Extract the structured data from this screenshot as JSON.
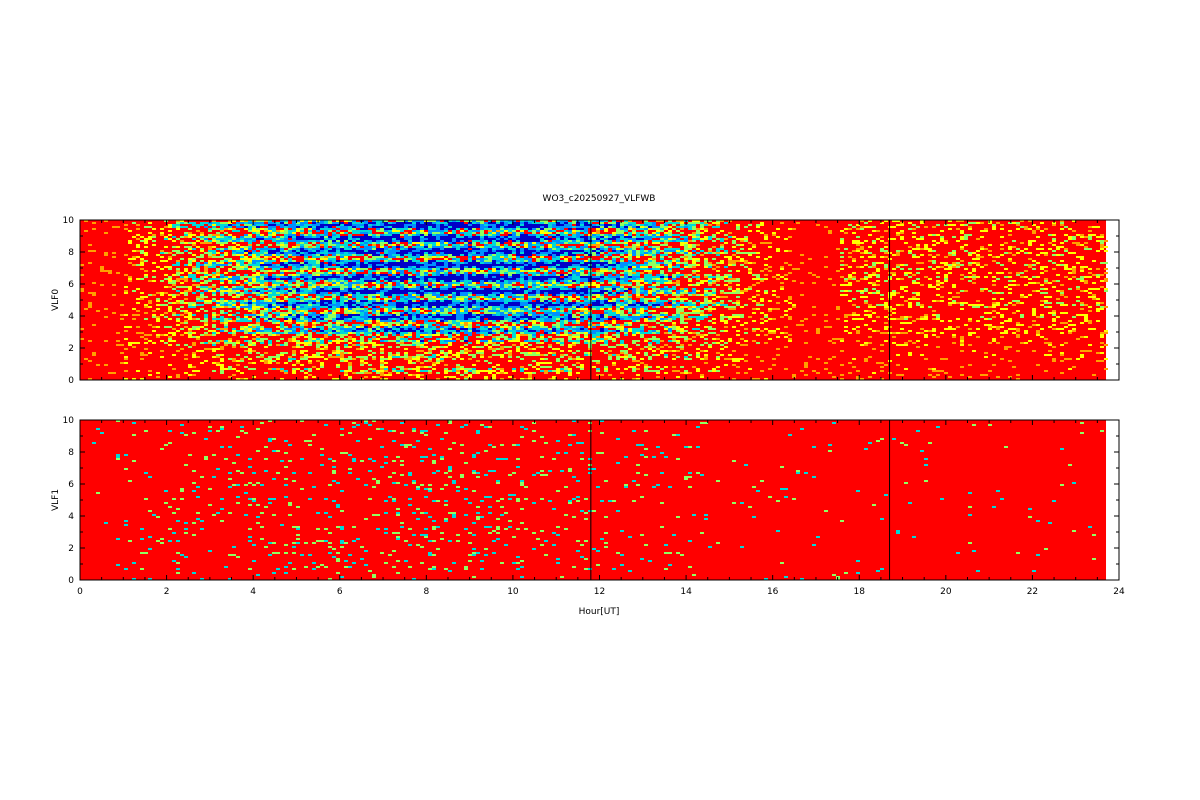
{
  "chart_data": [
    {
      "type": "heatmap",
      "title": "WO3_c20250927_VLFWB",
      "ylabel": "VLF0",
      "xlabel": "",
      "xlim": [
        0,
        24
      ],
      "ylim": [
        0,
        10
      ],
      "xticks": [
        0,
        2,
        4,
        6,
        8,
        10,
        12,
        14,
        16,
        18,
        20,
        22,
        24
      ],
      "yticks": [
        0,
        2,
        4,
        6,
        8,
        10
      ],
      "data_end_hour": 23.7,
      "gap_lines_hour": [
        11.8,
        18.7
      ],
      "grid": false,
      "colormap": [
        "#0000c8",
        "#0090ff",
        "#00d8d8",
        "#90ff60",
        "#ffff00",
        "#ffa000",
        "#ff0000"
      ],
      "background_color": "#ff0000",
      "activity": "high"
    },
    {
      "type": "heatmap",
      "title": "",
      "ylabel": "VLF1",
      "xlabel": "Hour[UT]",
      "xlim": [
        0,
        24
      ],
      "ylim": [
        0,
        10
      ],
      "xticks": [
        0,
        2,
        4,
        6,
        8,
        10,
        12,
        14,
        16,
        18,
        20,
        22,
        24
      ],
      "yticks": [
        0,
        2,
        4,
        6,
        8,
        10
      ],
      "data_end_hour": 23.7,
      "gap_lines_hour": [
        11.8,
        18.7
      ],
      "grid": false,
      "colormap": [
        "#0000c8",
        "#0090ff",
        "#00d8d8",
        "#90ff60",
        "#ffff00",
        "#ffa000",
        "#ff0000"
      ],
      "background_color": "#ff0000",
      "activity": "low"
    }
  ]
}
